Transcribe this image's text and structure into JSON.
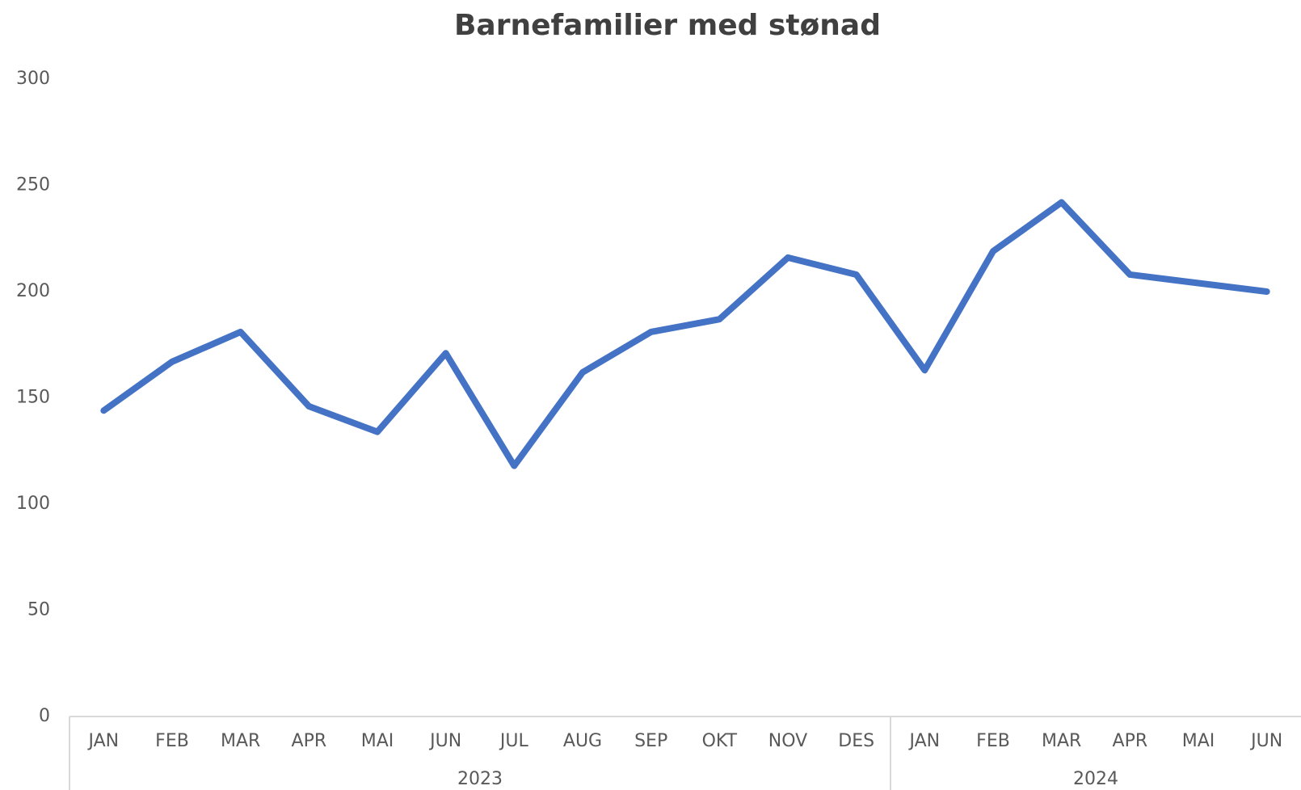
{
  "chart_data": {
    "type": "line",
    "title": "Barnefamilier med stønad",
    "groups": [
      {
        "name": "2023",
        "categories": [
          "JAN",
          "FEB",
          "MAR",
          "APR",
          "MAI",
          "JUN",
          "JUL",
          "AUG",
          "SEP",
          "OKT",
          "NOV",
          "DES"
        ]
      },
      {
        "name": "2024",
        "categories": [
          "JAN",
          "FEB",
          "MAR",
          "APR",
          "MAI",
          "JUN"
        ]
      }
    ],
    "series": [
      {
        "color": "#4472c4",
        "values": [
          144,
          167,
          181,
          146,
          134,
          171,
          118,
          162,
          181,
          187,
          216,
          208,
          163,
          219,
          242,
          208,
          204,
          200
        ]
      }
    ],
    "ylim": [
      0,
      300
    ],
    "yticks": [
      0,
      50,
      100,
      150,
      200,
      250,
      300
    ],
    "grid": false
  }
}
